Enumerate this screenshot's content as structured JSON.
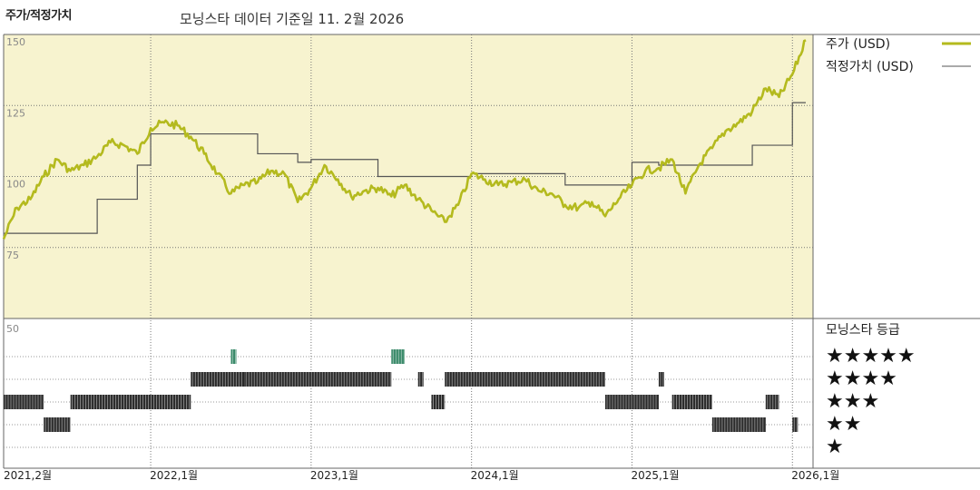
{
  "header": {
    "title": "주가/적정가치",
    "subtitle": "모닝스타 데이터 기준일 11. 2월 2026"
  },
  "chart_data": [
    {
      "type": "line",
      "ylim": [
        50,
        150
      ],
      "y_ticks": [
        "150",
        "125",
        "100",
        "75"
      ],
      "grid": true,
      "colors": {
        "price": "#b4ba1e",
        "fair_value": "#555555",
        "background": "#f7f3cf"
      },
      "series": [
        {
          "name": "주가 (USD)",
          "legend_text": "주가 (USD)",
          "x": [
            "2021-02",
            "2021-03",
            "2021-04",
            "2021-05",
            "2021-06",
            "2021-07",
            "2021-08",
            "2021-09",
            "2021-10",
            "2021-11",
            "2021-12",
            "2022-01",
            "2022-02",
            "2022-03",
            "2022-04",
            "2022-05",
            "2022-06",
            "2022-07",
            "2022-08",
            "2022-09",
            "2022-10",
            "2022-11",
            "2022-12",
            "2023-01",
            "2023-02",
            "2023-03",
            "2023-04",
            "2023-05",
            "2023-06",
            "2023-07",
            "2023-08",
            "2023-09",
            "2023-10",
            "2023-11",
            "2023-12",
            "2024-01",
            "2024-02",
            "2024-03",
            "2024-04",
            "2024-05",
            "2024-06",
            "2024-07",
            "2024-08",
            "2024-09",
            "2024-10",
            "2024-11",
            "2024-12",
            "2025-01",
            "2025-02",
            "2025-03",
            "2025-04",
            "2025-05",
            "2025-06",
            "2025-07",
            "2025-08",
            "2025-09",
            "2025-10",
            "2025-11",
            "2025-12",
            "2026-01",
            "2026-02"
          ],
          "values": [
            78,
            89,
            92,
            100,
            106,
            102,
            104,
            107,
            112,
            111,
            108,
            117,
            119,
            118,
            114,
            108,
            101,
            94,
            97,
            98,
            102,
            101,
            91,
            96,
            104,
            99,
            93,
            95,
            96,
            93,
            97,
            92,
            88,
            84,
            90,
            101,
            99,
            97,
            98,
            99,
            95,
            94,
            90,
            89,
            91,
            86,
            92,
            97,
            102,
            103,
            106,
            94,
            104,
            110,
            116,
            119,
            123,
            131,
            128,
            136,
            148
          ]
        },
        {
          "name": "적정가치 (USD)",
          "legend_text": "적정가치 (USD)",
          "x": [
            "2021-02",
            "2021-06",
            "2021-09",
            "2021-12",
            "2022-01",
            "2022-07",
            "2022-09",
            "2022-12",
            "2023-01",
            "2023-06",
            "2023-07",
            "2024-01",
            "2024-05",
            "2024-08",
            "2024-09",
            "2025-01",
            "2025-02",
            "2025-03",
            "2025-09",
            "2025-10",
            "2026-01",
            "2026-02"
          ],
          "values": [
            80,
            80,
            92,
            104,
            115,
            115,
            108,
            105,
            106,
            100,
            100,
            101,
            101,
            97,
            97,
            105,
            105,
            104,
            104,
            111,
            126,
            126
          ]
        }
      ]
    },
    {
      "type": "rating-timeline",
      "title": "모닝스타 등급",
      "y_ticks": [
        "50"
      ],
      "levels": [
        "★★★★★",
        "★★★★",
        "★★★",
        "★★",
        "★"
      ],
      "colors": {
        "bar": "#2a2a2a",
        "five_star": "#3a8a6a"
      },
      "segments": [
        {
          "stars": 3,
          "start": "2021-02",
          "end": "2021-05"
        },
        {
          "stars": 2,
          "start": "2021-05",
          "end": "2021-07"
        },
        {
          "stars": 3,
          "start": "2021-07",
          "end": "2022-04"
        },
        {
          "stars": 4,
          "start": "2022-04",
          "end": "2022-08"
        },
        {
          "stars": 5,
          "start": "2022-07",
          "end": "2022-07"
        },
        {
          "stars": 4,
          "start": "2022-08",
          "end": "2023-07"
        },
        {
          "stars": 5,
          "start": "2023-07",
          "end": "2023-08"
        },
        {
          "stars": 4,
          "start": "2023-09",
          "end": "2023-09"
        },
        {
          "stars": 3,
          "start": "2023-10",
          "end": "2023-11"
        },
        {
          "stars": 4,
          "start": "2023-11",
          "end": "2024-11"
        },
        {
          "stars": 3,
          "start": "2024-11",
          "end": "2025-03"
        },
        {
          "stars": 4,
          "start": "2025-03",
          "end": "2025-03"
        },
        {
          "stars": 3,
          "start": "2025-04",
          "end": "2025-07"
        },
        {
          "stars": 2,
          "start": "2025-07",
          "end": "2025-11"
        },
        {
          "stars": 3,
          "start": "2025-11",
          "end": "2025-12"
        },
        {
          "stars": 2,
          "start": "2026-01",
          "end": "2026-01"
        }
      ]
    }
  ],
  "x_axis": {
    "labels": [
      "2021,2월",
      "2022,1월",
      "2023,1월",
      "2024,1월",
      "2025,1월",
      "2026,1월"
    ],
    "label_dates": [
      "2021-02",
      "2022-01",
      "2023-01",
      "2024-01",
      "2025-01",
      "2026-01"
    ],
    "range": [
      "2021-02",
      "2026-02"
    ]
  }
}
